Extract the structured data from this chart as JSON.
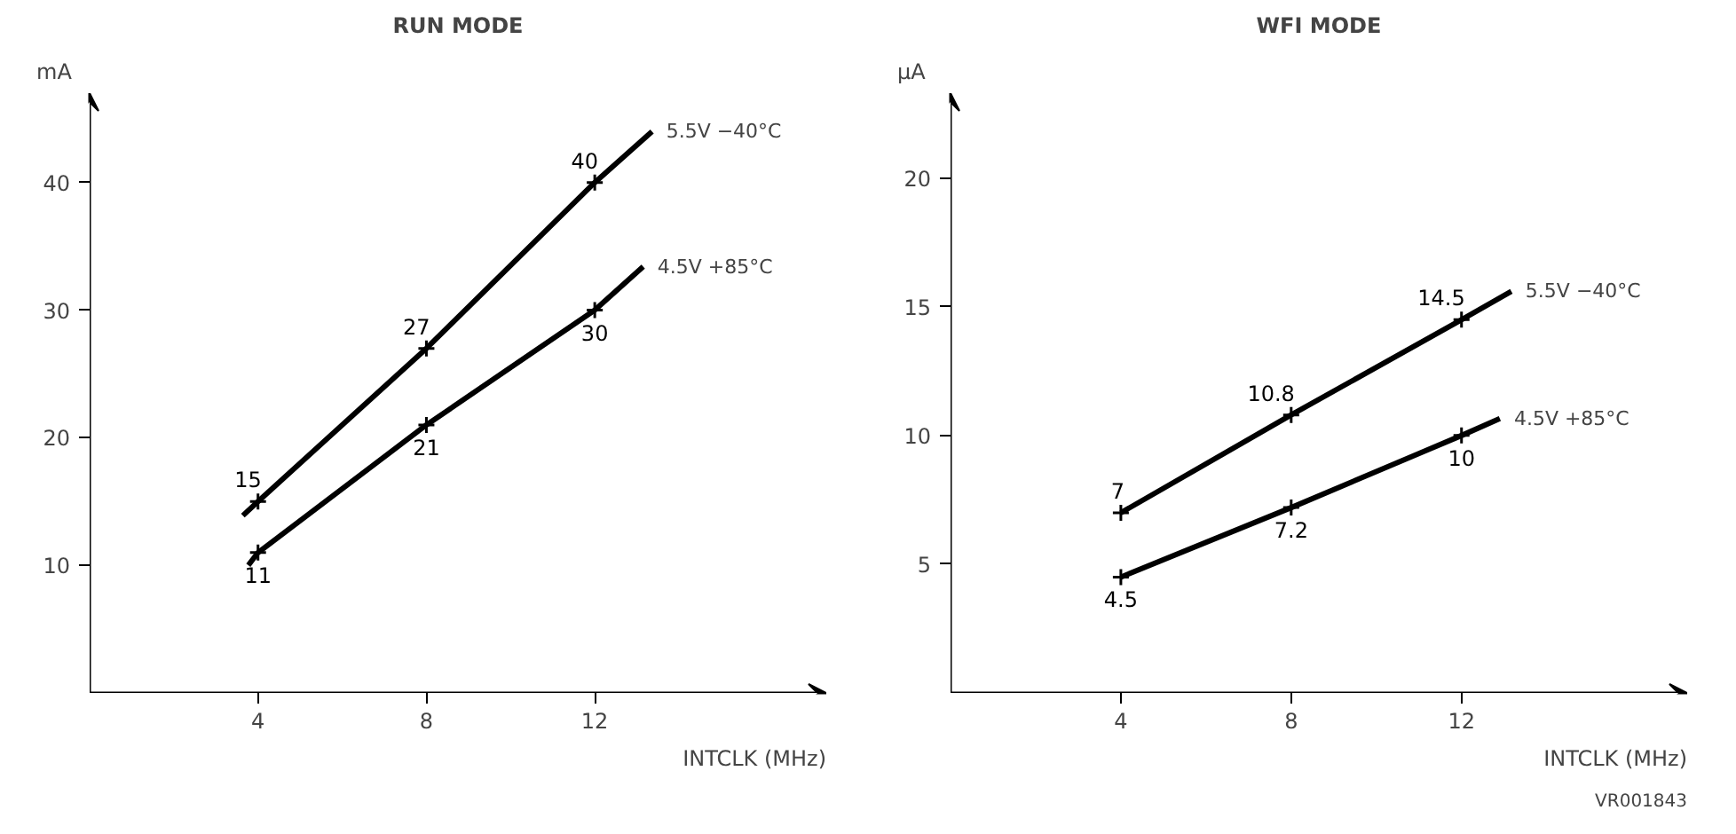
{
  "chart_data": [
    {
      "type": "line",
      "title": "RUN MODE",
      "ylabel": "mA",
      "xlabel": "INTCLK (MHz)",
      "xlim": [
        0,
        17.5
      ],
      "ylim": [
        0,
        47
      ],
      "xticks": [
        4,
        8,
        12
      ],
      "yticks": [
        10,
        20,
        30,
        40
      ],
      "marker": "cross",
      "series": [
        {
          "name": "5.5V  −40°C",
          "color": "#000000",
          "x": [
            3.64,
            4,
            8,
            12,
            13.36
          ],
          "values": [
            13.9,
            15,
            27,
            40,
            44.0
          ],
          "value_labels": [
            null,
            "15",
            "27",
            "40",
            null
          ]
        },
        {
          "name": "4.5V  +85°C",
          "color": "#000000",
          "x": [
            3.77,
            4,
            8,
            12,
            13.15
          ],
          "values": [
            10.0,
            11,
            21,
            30,
            33.4
          ],
          "value_labels": [
            null,
            "11",
            "21",
            "30",
            null
          ]
        }
      ]
    },
    {
      "type": "line",
      "title": "WFI MODE",
      "ylabel": "μA",
      "xlabel": "INTCLK (MHz)",
      "xlim": [
        0,
        17.3
      ],
      "ylim": [
        0,
        23.3
      ],
      "xticks": [
        4,
        8,
        12
      ],
      "yticks": [
        5,
        10,
        15,
        20
      ],
      "marker": "cross",
      "annotations": [
        "VR001843"
      ],
      "series": [
        {
          "name": "5.5V  −40°C",
          "color": "#000000",
          "x": [
            4,
            8,
            12,
            13.17
          ],
          "values": [
            7,
            10.8,
            14.5,
            15.6
          ],
          "value_labels": [
            "7",
            "10.8",
            "14.5",
            null
          ]
        },
        {
          "name": "4.5V  +85°C",
          "color": "#000000",
          "x": [
            4,
            8,
            12,
            12.9
          ],
          "values": [
            4.5,
            7.2,
            10,
            10.66
          ],
          "value_labels": [
            "4.5",
            "7.2",
            "10",
            null
          ]
        }
      ]
    }
  ]
}
